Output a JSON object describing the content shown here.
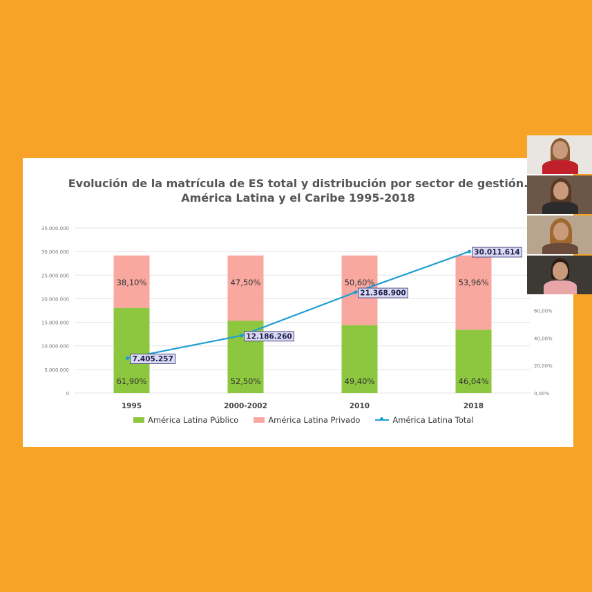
{
  "chart_data": {
    "type": "bar",
    "stacked": true,
    "title": "Evolución de la matrícula de ES total y distribución por sector de gestión.",
    "subtitle": "América Latina y el Caribe 1995-2018",
    "categories": [
      "1995",
      "2000-2002",
      "2010",
      "2018"
    ],
    "series": [
      {
        "name": "América Latina Público",
        "type": "bar",
        "color": "#8DC63F",
        "axis": "right",
        "values": [
          61.9,
          52.5,
          49.4,
          46.04
        ],
        "labels": [
          "61,90%",
          "52,50%",
          "49,40%",
          "46,04%"
        ]
      },
      {
        "name": "América Latina Privado",
        "type": "bar",
        "color": "#F9A8A0",
        "axis": "right",
        "values": [
          38.1,
          47.5,
          50.6,
          53.96
        ],
        "labels": [
          "38,10%",
          "47,50%",
          "50,60%",
          "53,96%"
        ]
      },
      {
        "name": "América Latina Total",
        "type": "line",
        "color": "#1E9FD3",
        "axis": "left",
        "values": [
          7405257,
          12186260,
          21368900,
          30011614
        ],
        "labels": [
          "7.405.257",
          "12.186.260",
          "21.368.900",
          "30.011.614"
        ]
      }
    ],
    "y_left": {
      "range": [
        0,
        35000000
      ],
      "ticks": [
        "0",
        "5.000.000",
        "10.000.000",
        "15.000.000",
        "20.000.000",
        "25.000.000",
        "30.000.000",
        "35.000.000"
      ]
    },
    "y_right": {
      "range": [
        0,
        120
      ],
      "ticks": [
        "0,00%",
        "20,00%",
        "40,00%",
        "60,00%"
      ]
    },
    "legend": "bottom",
    "grid": true
  },
  "participants": [
    {
      "name": "participant-1",
      "bg": "#E9E6E1",
      "hair": "#8a5a33",
      "shirt": "#c0202a"
    },
    {
      "name": "participant-2",
      "bg": "#6b5648",
      "hair": "#5a3a25",
      "shirt": "#2b2b2b"
    },
    {
      "name": "participant-3",
      "bg": "#b9a58f",
      "hair": "#a0682e",
      "shirt": "#6a4a3a"
    },
    {
      "name": "participant-4",
      "bg": "#3d3a35",
      "hair": "#2b1d14",
      "shirt": "#e8a6a8"
    }
  ]
}
